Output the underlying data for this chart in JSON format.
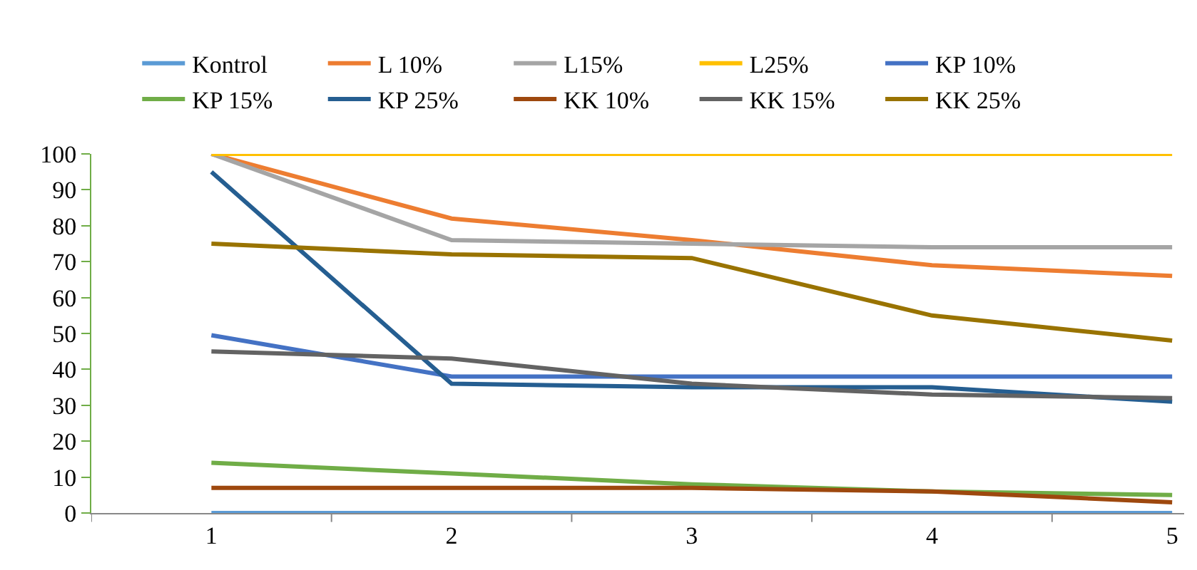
{
  "chart_data": {
    "type": "line",
    "categories": [
      "1",
      "2",
      "3",
      "4",
      "5"
    ],
    "series": [
      {
        "name": "Kontrol",
        "color": "#5b9bd5",
        "values": [
          0,
          0,
          0,
          0,
          0
        ]
      },
      {
        "name": "L 10%",
        "color": "#ed7d31",
        "values": [
          100,
          82,
          76,
          69,
          66
        ]
      },
      {
        "name": "L15%",
        "color": "#a5a5a5",
        "values": [
          100,
          76,
          75,
          74,
          74
        ]
      },
      {
        "name": "L25%",
        "color": "#ffc000",
        "values": [
          100,
          100,
          100,
          100,
          100
        ]
      },
      {
        "name": "KP 10%",
        "color": "#4472c4",
        "values": [
          49.5,
          38,
          38,
          38,
          38
        ]
      },
      {
        "name": "KP 15%",
        "color": "#70ad47",
        "values": [
          14,
          11,
          8,
          6,
          5
        ]
      },
      {
        "name": "KP 25%",
        "color": "#255e91",
        "values": [
          95,
          36,
          35,
          35,
          31
        ]
      },
      {
        "name": "KK 10%",
        "color": "#9e480e",
        "values": [
          7,
          7,
          7,
          6,
          3
        ]
      },
      {
        "name": "KK 15%",
        "color": "#636363",
        "values": [
          45,
          43,
          36,
          33,
          32
        ]
      },
      {
        "name": "KK 25%",
        "color": "#997300",
        "values": [
          75,
          72,
          71,
          55,
          48
        ]
      }
    ],
    "ylim": [
      0,
      100
    ],
    "yticks": [
      0,
      10,
      20,
      30,
      40,
      50,
      60,
      70,
      80,
      90,
      100
    ],
    "legend": "top",
    "marker": "none",
    "line_style": "solid"
  }
}
